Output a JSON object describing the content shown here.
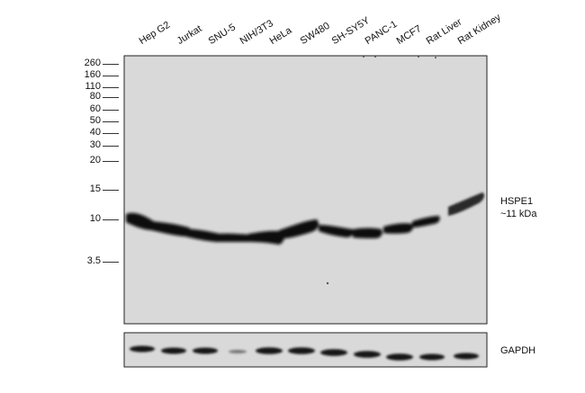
{
  "lanes": [
    "Hep G2",
    "Jurkat",
    "SNU-5",
    "NIH/3T3",
    "HeLa",
    "SW480",
    "SH-SY5Y",
    "PANC-1",
    "MCF7",
    "Rat Liver",
    "Rat Kidney"
  ],
  "markers": [
    "260",
    "160",
    "110",
    "80",
    "60",
    "50",
    "40",
    "30",
    "20",
    "15",
    "10",
    "3.5"
  ],
  "target": {
    "name": "HSPE1",
    "size": "~11 kDa"
  },
  "loading_control": {
    "name": "GAPDH"
  }
}
